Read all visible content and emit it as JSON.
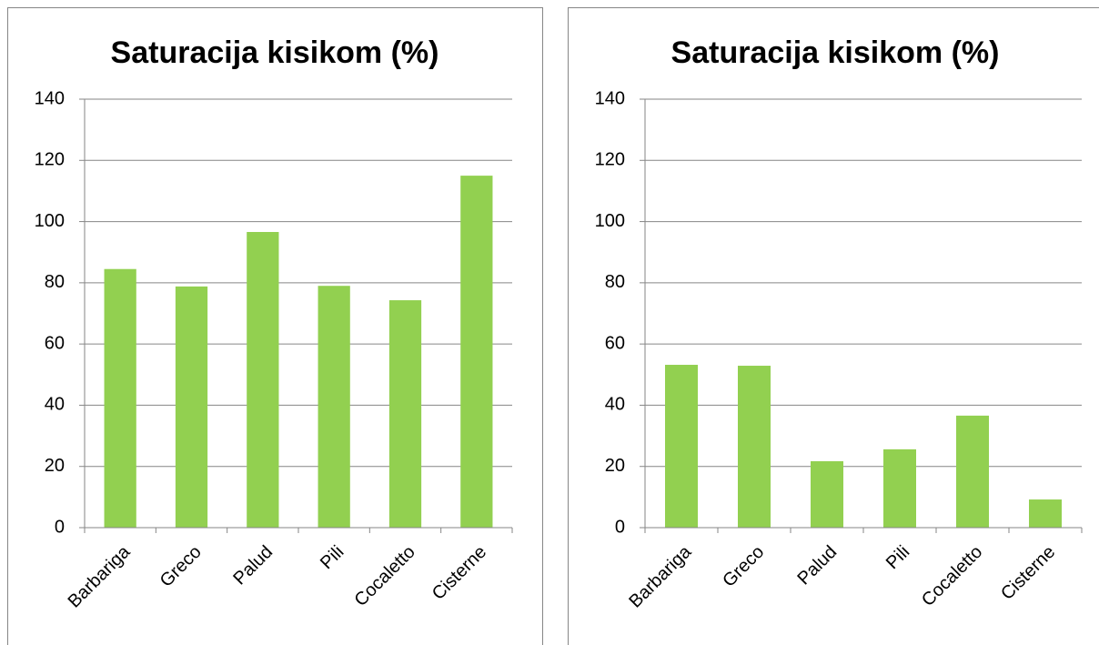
{
  "chart_data": [
    {
      "type": "bar",
      "title": "Saturacija kisikom (%)",
      "categories": [
        "Barbariga",
        "Greco",
        "Palud",
        "Pili",
        "Cocaletto",
        "Cisterne"
      ],
      "values": [
        84.5,
        78.8,
        96.6,
        79,
        74.3,
        115
      ],
      "color": "#92d050",
      "ylim": [
        0,
        140
      ],
      "yticks": [
        0,
        20,
        40,
        60,
        80,
        100,
        120,
        140
      ],
      "grid": true
    },
    {
      "type": "bar",
      "title": "Saturacija kisikom (%)",
      "categories": [
        "Barbariga",
        "Greco",
        "Palud",
        "Pili",
        "Cocaletto",
        "Cisterne"
      ],
      "values": [
        53.2,
        52.9,
        21.7,
        25.6,
        36.6,
        9.2
      ],
      "color": "#92d050",
      "ylim": [
        0,
        140
      ],
      "yticks": [
        0,
        20,
        40,
        60,
        80,
        100,
        120,
        140
      ],
      "grid": true
    }
  ]
}
